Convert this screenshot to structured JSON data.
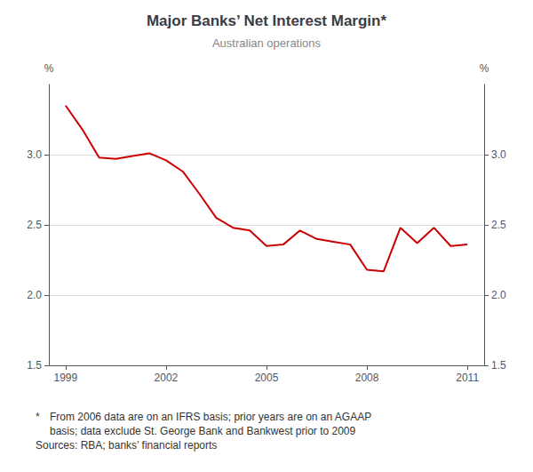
{
  "chart_data": {
    "type": "line",
    "title": "Major Banks’ Net Interest Margin*",
    "subtitle": "Australian operations",
    "x": [
      1999.0,
      1999.5,
      2000.0,
      2000.5,
      2001.0,
      2001.5,
      2002.0,
      2002.5,
      2003.0,
      2003.5,
      2004.0,
      2004.5,
      2005.0,
      2005.5,
      2006.0,
      2006.5,
      2007.0,
      2007.5,
      2008.0,
      2008.5,
      2009.0,
      2009.5,
      2010.0,
      2010.5,
      2011.0
    ],
    "values": [
      3.35,
      3.18,
      2.98,
      2.97,
      2.99,
      3.01,
      2.96,
      2.88,
      2.72,
      2.55,
      2.48,
      2.46,
      2.35,
      2.36,
      2.46,
      2.4,
      2.38,
      2.36,
      2.18,
      2.17,
      2.48,
      2.37,
      2.48,
      2.35,
      2.36
    ],
    "color": "#cc0000",
    "xlim": [
      1998.5,
      2011.5
    ],
    "xticks": [
      1999,
      2002,
      2005,
      2008,
      2011
    ],
    "ylim": [
      1.5,
      3.5
    ],
    "yticks": [
      1.5,
      {
        "value": 2.0,
        "label": "2.0"
      },
      2.5,
      {
        "value": 3.0,
        "label": "3.0"
      }
    ],
    "y2lim": [
      1.5,
      3.5
    ],
    "y2ticks": [
      1.5,
      {
        "value": 2.0,
        "label": "2.0"
      },
      2.5,
      {
        "value": 3.0,
        "label": "3.0"
      }
    ],
    "ylabel": "%",
    "y2label": "%",
    "grid": true,
    "footnote_star": "*",
    "footnotes": [
      "From 2006 data are on an IFRS basis; prior years are on an AGAAP",
      "basis; data exclude St. George Bank and Bankwest prior to 2009",
      "Sources: RBA; banks’ financial reports"
    ]
  }
}
